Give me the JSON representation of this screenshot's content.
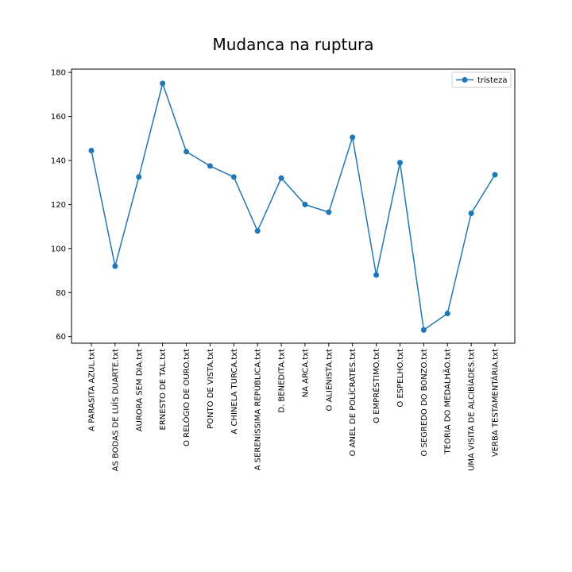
{
  "chart_data": {
    "type": "line",
    "title": "Mudanca na ruptura",
    "xlabel": "",
    "ylabel": "",
    "categories": [
      "A PARASITA AZUL.txt",
      "AS BODAS DE LUÍS DUARTE.txt",
      "AURORA SEM DIA.txt",
      "ERNESTO DE TAL.txt",
      "O RELÓGIO DE OURO.txt",
      "PONTO DE VISTA.txt",
      "A CHINELA TURCA.txt",
      "A SERENÍSSIMA REPÚBLICA.txt",
      "D. BENEDITA.txt",
      "NA ARCA.txt",
      "O ALIENISTA.txt",
      "O ANEL DE POLÍCRATES.txt",
      "O EMPRÉSTIMO.txt",
      "O ESPELHO.txt",
      "O SEGREDO DO BONZO.txt",
      "TEORIA DO MEDALHÃO.txt",
      "UMA VISITA DE ALCIBÍADES.txt",
      "VERBA TESTAMENTÁRIA.txt"
    ],
    "series": [
      {
        "name": "tristeza",
        "color": "#1f77b4",
        "values": [
          144.5,
          92,
          132.5,
          175,
          144,
          137.5,
          132.5,
          108,
          132,
          120,
          116.5,
          150.5,
          88,
          139,
          63,
          70.5,
          116,
          133.5
        ]
      }
    ],
    "ylim": [
      57,
      181.5
    ],
    "yticks": [
      60,
      80,
      100,
      120,
      140,
      160,
      180
    ],
    "grid": false,
    "legend": "top-right"
  }
}
